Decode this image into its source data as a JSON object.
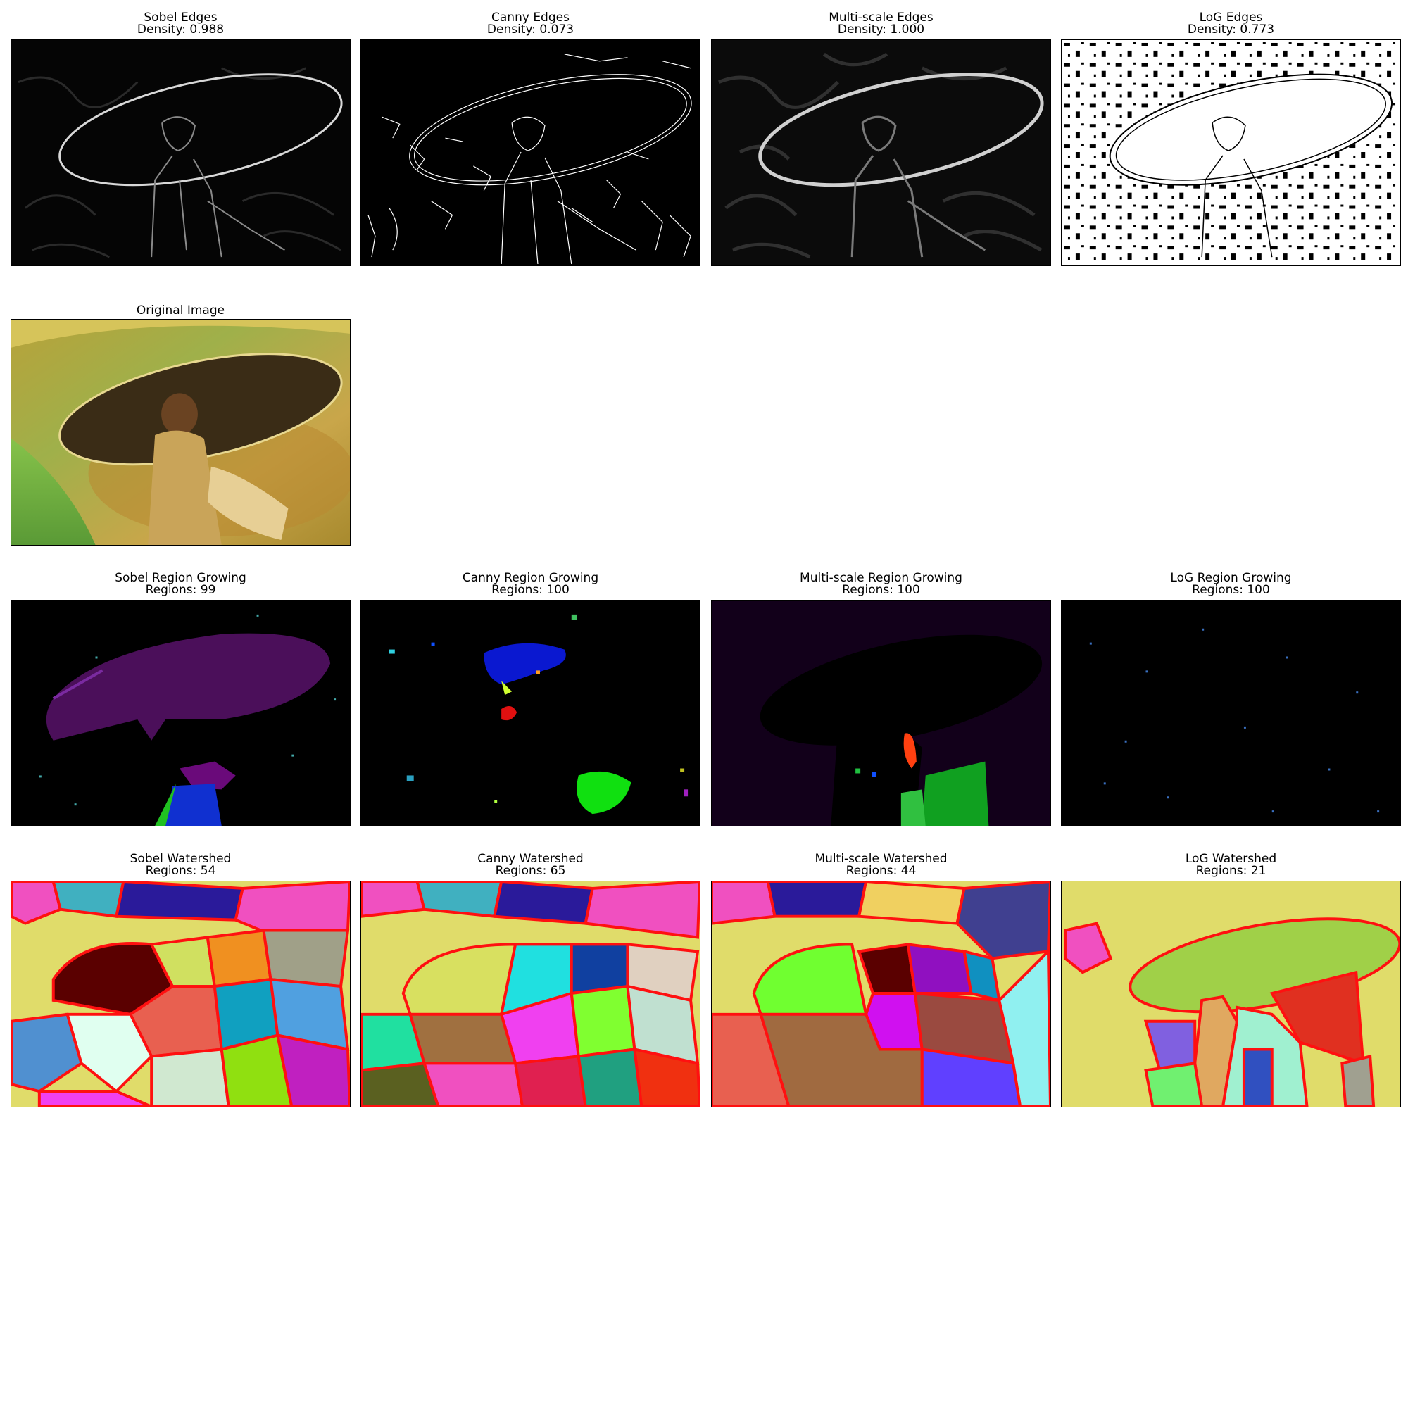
{
  "rows": {
    "edges": [
      {
        "title": "Sobel Edges",
        "stat": "Density: 0.988"
      },
      {
        "title": "Canny Edges",
        "stat": "Density: 0.073"
      },
      {
        "title": "Multi-scale Edges",
        "stat": "Density: 1.000"
      },
      {
        "title": "LoG Edges",
        "stat": "Density: 0.773"
      }
    ],
    "original": {
      "title": "Original Image"
    },
    "region_growing": [
      {
        "title": "Sobel Region Growing",
        "stat": "Regions: 99"
      },
      {
        "title": "Canny Region Growing",
        "stat": "Regions: 100"
      },
      {
        "title": "Multi-scale Region Growing",
        "stat": "Regions: 100"
      },
      {
        "title": "LoG Region Growing",
        "stat": "Regions: 100"
      }
    ],
    "watershed": [
      {
        "title": "Sobel Watershed",
        "stat": "Regions: 54"
      },
      {
        "title": "Canny Watershed",
        "stat": "Regions: 65"
      },
      {
        "title": "Multi-scale Watershed",
        "stat": "Regions: 44"
      },
      {
        "title": "LoG Watershed",
        "stat": "Regions: 21"
      }
    ]
  },
  "colors": {
    "edge_bg": "#000000",
    "edge_line": "#ffffff",
    "watershed_boundary": "#ff0000",
    "watershed_bg": "#e0dc6a"
  }
}
